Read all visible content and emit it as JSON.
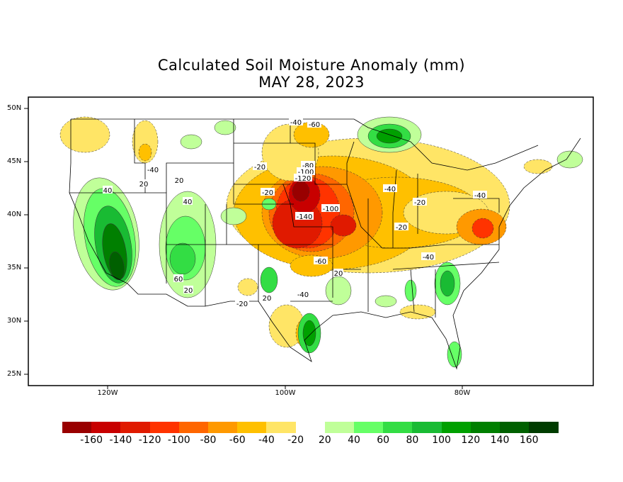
{
  "title": "Calculated Soil Moisture Anomaly (mm)",
  "subtitle": "MAY 28, 2023",
  "lat_labels": [
    "50N",
    "45N",
    "40N",
    "35N",
    "30N",
    "25N"
  ],
  "lon_labels": [
    "120W",
    "100W",
    "80W"
  ],
  "colorbar": {
    "labels": [
      "-160",
      "-140",
      "-120",
      "-100",
      "-80",
      "-60",
      "-40",
      "-20",
      "20",
      "40",
      "60",
      "80",
      "100",
      "120",
      "140",
      "160"
    ],
    "colors": [
      "#990000",
      "#c80000",
      "#e01a00",
      "#ff3300",
      "#ff6600",
      "#ff9900",
      "#ffc000",
      "#ffe566",
      "#ffffff",
      "#c0ff99",
      "#66ff66",
      "#33dd44",
      "#19bb33",
      "#00a000",
      "#007f00",
      "#006000",
      "#003c00"
    ]
  },
  "contour_labels": [
    "-40",
    "-60",
    "-20",
    "-80",
    "-100",
    "-120",
    "-20",
    "-140",
    "-100",
    "-40",
    "-20",
    "-40",
    "-20",
    "-40",
    "-60",
    "20",
    "-40",
    "20",
    "-20",
    "20",
    "60",
    "40",
    "20",
    "20",
    "40",
    "-40"
  ]
}
